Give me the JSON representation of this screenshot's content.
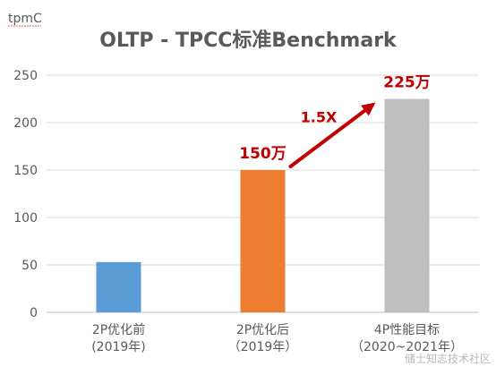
{
  "chart_data": {
    "type": "bar",
    "title": "OLTP - TPCC标准Benchmark",
    "ylabel": "tpmC",
    "ylim": [
      0,
      250
    ],
    "yticks": [
      0,
      50,
      100,
      150,
      200,
      250
    ],
    "grid": true,
    "categories": [
      [
        "2P优化前",
        "(2019年)"
      ],
      [
        "2P优化后",
        "（2019年）"
      ],
      [
        "4P性能目标",
        "（2020~2021年）"
      ]
    ],
    "values": [
      53,
      150,
      225
    ],
    "bar_colors": [
      "#5b9bd5",
      "#ed7d31",
      "#bfbfbf"
    ],
    "data_labels": [
      "",
      "150万",
      "225万"
    ],
    "annotations": [
      {
        "text": "1.5X",
        "color": "#c00000"
      }
    ]
  },
  "watermark": "储士知志技术社区"
}
